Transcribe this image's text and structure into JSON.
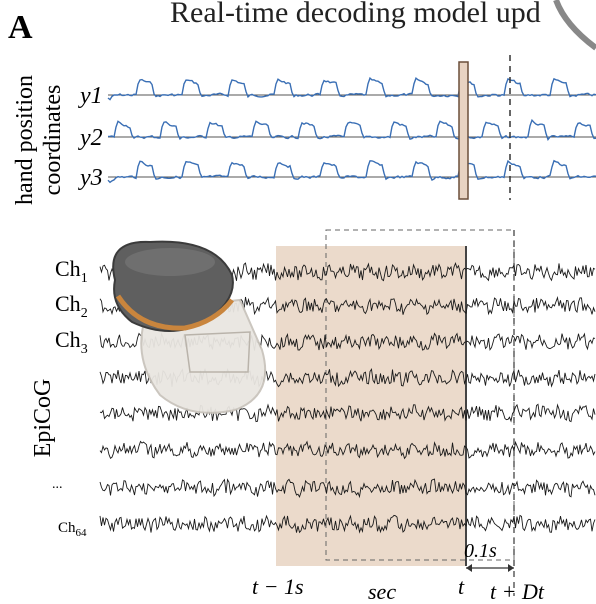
{
  "panel_label": "A",
  "title": "Real-time decoding model  upd",
  "hand": {
    "axis_label_line1": "hand position",
    "axis_label_line2": "coordinates",
    "rows": [
      {
        "label": "y1"
      },
      {
        "label": "y2"
      },
      {
        "label": "y3"
      }
    ],
    "trace_color": "#3a6fb5"
  },
  "ecog": {
    "axis_label": "EpiCoG",
    "channels": [
      {
        "label": "Ch",
        "sub": "1"
      },
      {
        "label": "Ch",
        "sub": "2"
      },
      {
        "label": "Ch",
        "sub": "3"
      }
    ],
    "ellipsis": "...",
    "last_channel": {
      "label": "Ch",
      "sub": "64"
    },
    "window_color": "#e8d3c2"
  },
  "time_axis": {
    "t_minus": "t − 1s",
    "sec": "sec",
    "t": "t",
    "t_plus": "t + Dt",
    "delta": "0.1s"
  }
}
